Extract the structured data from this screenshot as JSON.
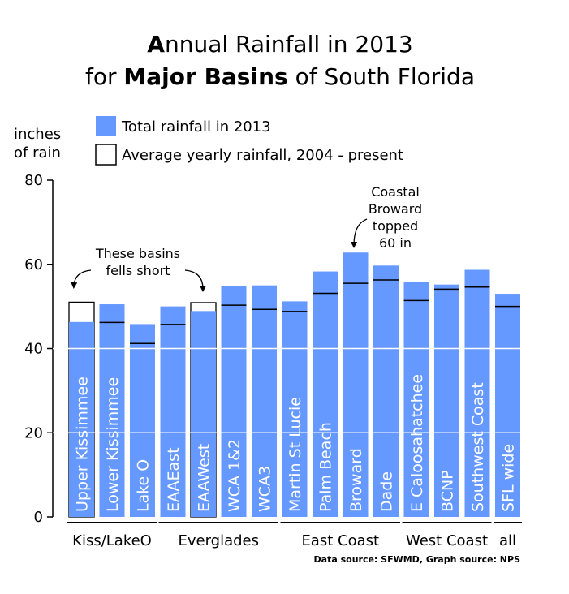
{
  "title": {
    "line1_cap": "A",
    "line1_rest": "nnual Rainfall in 2013",
    "line2_pre": "for ",
    "line2_bold": "Major Basins",
    "line2_post": " of South Florida"
  },
  "colors": {
    "total": "#6699FF",
    "average": "#FFFFFF",
    "gridline": "#FFFFFF",
    "bar_label": "#FFFFFF"
  },
  "chart_data": {
    "type": "bar",
    "title": "Annual Rainfall in 2013 for Major Basins of South Florida",
    "ylabel_line1": "inches",
    "ylabel_line2": "of rain",
    "ylim": [
      0,
      80
    ],
    "yticks": [
      "0",
      "20",
      "40",
      "60",
      "80"
    ],
    "categories": [
      "Upper Kissimmee",
      "Lower Kissimmee",
      "Lake O",
      "EAAEast",
      "EAAWest",
      "WCA 1&2",
      "WCA3",
      "Martin St Lucie",
      "Palm Beach",
      "Broward",
      "Dade",
      "E Caloosahatchee",
      "BCNP",
      "Southwest Coast",
      "SFL wide"
    ],
    "series": [
      {
        "name": "Total rainfall in 2013",
        "values": [
          46.3,
          50.5,
          45.8,
          50.0,
          48.9,
          54.8,
          55.0,
          51.2,
          58.3,
          62.8,
          59.7,
          55.8,
          55.2,
          58.7,
          53.0
        ]
      },
      {
        "name": "Average yearly rainfall, 2004 - present",
        "values": [
          51.0,
          46.2,
          41.2,
          45.7,
          50.9,
          50.3,
          49.3,
          48.8,
          53.1,
          55.5,
          56.3,
          51.4,
          54.1,
          54.6,
          50.0
        ]
      }
    ],
    "groups": [
      {
        "label": "Kiss/LakeO",
        "start": 0,
        "end": 2
      },
      {
        "label": "Everglades",
        "start": 3,
        "end": 6
      },
      {
        "label": "East Coast",
        "start": 7,
        "end": 10
      },
      {
        "label": "West Coast",
        "start": 11,
        "end": 13
      },
      {
        "label": "all",
        "start": 14,
        "end": 14
      }
    ],
    "annotations": [
      {
        "lines": [
          "These basins",
          "fells short"
        ]
      },
      {
        "lines": [
          "Coastal",
          "Broward",
          "topped",
          "60 in"
        ]
      }
    ],
    "source": "Data source: SFWMD, Graph source: NPS"
  }
}
